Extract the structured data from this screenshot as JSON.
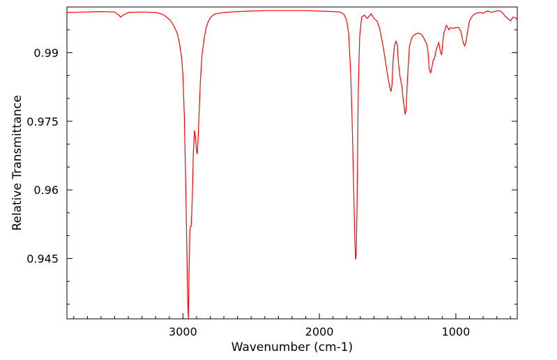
{
  "chart_data": {
    "type": "line",
    "title": "",
    "xlabel": "Wavenumber (cm-1)",
    "ylabel": "Relative Transmittance",
    "xlim": [
      3850,
      550
    ],
    "ylim": [
      0.9318,
      1.0
    ],
    "x_reversed": true,
    "grid": false,
    "legend": "none",
    "x_ticks": [
      {
        "value": 3000,
        "label": "3000"
      },
      {
        "value": 2000,
        "label": "2000"
      },
      {
        "value": 1000,
        "label": "1000"
      }
    ],
    "y_ticks": [
      {
        "value": 0.945,
        "label": "0.945"
      },
      {
        "value": 0.96,
        "label": "0.96"
      },
      {
        "value": 0.975,
        "label": "0.975"
      },
      {
        "value": 0.99,
        "label": "0.99"
      }
    ],
    "series": [
      {
        "color": "#ff0000",
        "x": [
          3850,
          3700,
          3600,
          3500,
          3470,
          3455,
          3440,
          3400,
          3300,
          3200,
          3150,
          3120,
          3090,
          3060,
          3040,
          3025,
          3010,
          3000,
          2990,
          2980,
          2972,
          2965,
          2960,
          2955,
          2950,
          2945,
          2940,
          2935,
          2930,
          2924,
          2915,
          2908,
          2900,
          2895,
          2888,
          2880,
          2872,
          2860,
          2845,
          2830,
          2815,
          2800,
          2780,
          2760,
          2700,
          2600,
          2500,
          2400,
          2300,
          2200,
          2100,
          2000,
          1900,
          1850,
          1820,
          1800,
          1785,
          1770,
          1760,
          1750,
          1745,
          1740,
          1735,
          1730,
          1725,
          1720,
          1715,
          1705,
          1690,
          1670,
          1650,
          1620,
          1600,
          1580,
          1560,
          1540,
          1520,
          1500,
          1485,
          1475,
          1468,
          1460,
          1450,
          1440,
          1430,
          1420,
          1410,
          1395,
          1385,
          1378,
          1372,
          1365,
          1355,
          1340,
          1320,
          1300,
          1275,
          1250,
          1235,
          1225,
          1215,
          1205,
          1195,
          1185,
          1175,
          1165,
          1160,
          1155,
          1145,
          1135,
          1125,
          1115,
          1105,
          1098,
          1090,
          1080,
          1070,
          1060,
          1050,
          1040,
          1020,
          1000,
          980,
          965,
          955,
          945,
          935,
          925,
          915,
          900,
          880,
          860,
          840,
          820,
          800,
          780,
          760,
          740,
          720,
          700,
          680,
          660,
          640,
          620,
          600,
          580,
          560,
          550
        ],
        "y": [
          0.9988,
          0.9989,
          0.999,
          0.9989,
          0.9982,
          0.9978,
          0.9982,
          0.9988,
          0.9989,
          0.9988,
          0.9984,
          0.9978,
          0.997,
          0.9955,
          0.994,
          0.992,
          0.989,
          0.985,
          0.976,
          0.962,
          0.948,
          0.936,
          0.9318,
          0.942,
          0.951,
          0.952,
          0.952,
          0.955,
          0.96,
          0.968,
          0.973,
          0.9715,
          0.9685,
          0.9678,
          0.9715,
          0.978,
          0.984,
          0.9895,
          0.993,
          0.9955,
          0.9968,
          0.9976,
          0.9982,
          0.9985,
          0.9988,
          0.999,
          0.9991,
          0.9992,
          0.9992,
          0.9992,
          0.9992,
          0.9991,
          0.999,
          0.9989,
          0.9984,
          0.997,
          0.994,
          0.985,
          0.975,
          0.962,
          0.955,
          0.949,
          0.9448,
          0.946,
          0.955,
          0.968,
          0.982,
          0.9935,
          0.9978,
          0.9982,
          0.9975,
          0.9985,
          0.9975,
          0.997,
          0.9955,
          0.9925,
          0.989,
          0.985,
          0.9825,
          0.9815,
          0.983,
          0.9885,
          0.9915,
          0.9925,
          0.992,
          0.9875,
          0.985,
          0.9825,
          0.9795,
          0.978,
          0.9765,
          0.9775,
          0.984,
          0.9915,
          0.9935,
          0.994,
          0.9943,
          0.994,
          0.9932,
          0.9925,
          0.992,
          0.9905,
          0.9865,
          0.9855,
          0.987,
          0.9885,
          0.9885,
          0.989,
          0.9905,
          0.9915,
          0.9922,
          0.9905,
          0.9895,
          0.9915,
          0.994,
          0.995,
          0.996,
          0.9955,
          0.995,
          0.9955,
          0.9953,
          0.9955,
          0.9955,
          0.9948,
          0.9935,
          0.992,
          0.9915,
          0.9925,
          0.9945,
          0.997,
          0.998,
          0.9985,
          0.9987,
          0.9988,
          0.9986,
          0.999,
          0.9991,
          0.9988,
          0.999,
          0.9991,
          0.9992,
          0.9988,
          0.998,
          0.9975,
          0.997,
          0.9978,
          0.9976,
          0.9972
        ]
      }
    ]
  }
}
